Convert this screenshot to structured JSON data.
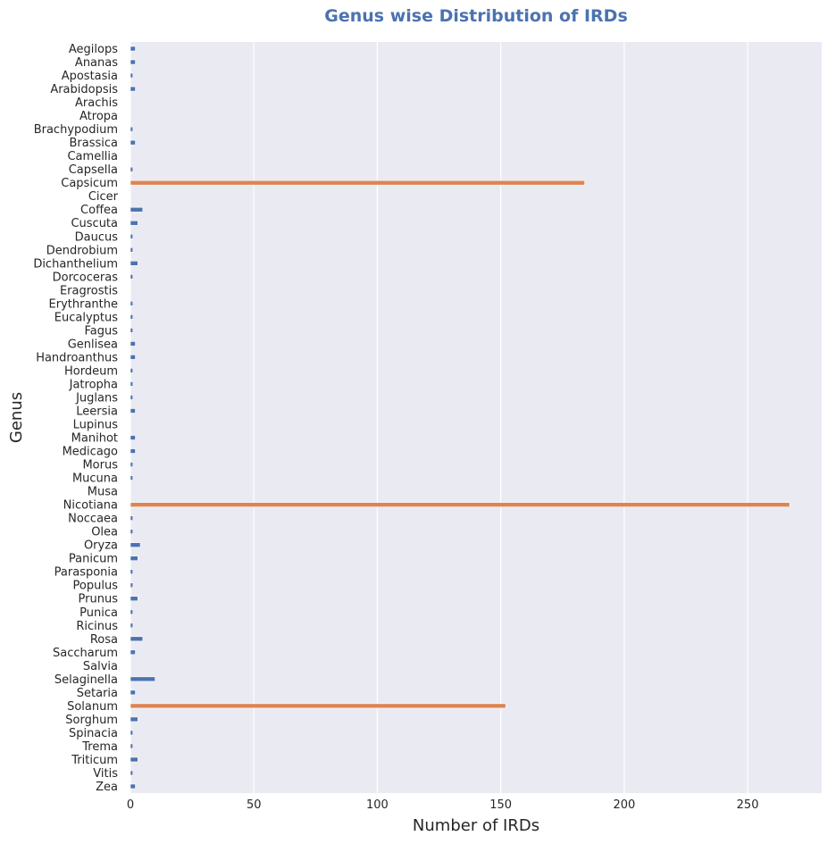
{
  "chart_data": {
    "type": "bar",
    "orientation": "horizontal",
    "title": "Genus wise Distribution of IRDs",
    "xlabel": "Number of IRDs",
    "ylabel": "Genus",
    "xlim": [
      0,
      280
    ],
    "xticks": [
      0,
      50,
      100,
      150,
      200,
      250
    ],
    "grid": true,
    "categories": [
      "Aegilops",
      "Ananas",
      "Apostasia",
      "Arabidopsis",
      "Arachis",
      "Atropa",
      "Brachypodium",
      "Brassica",
      "Camellia",
      "Capsella",
      "Capsicum",
      "Cicer",
      "Coffea",
      "Cuscuta",
      "Daucus",
      "Dendrobium",
      "Dichanthelium",
      "Dorcoceras",
      "Eragrostis",
      "Erythranthe",
      "Eucalyptus",
      "Fagus",
      "Genlisea",
      "Handroanthus",
      "Hordeum",
      "Jatropha",
      "Juglans",
      "Leersia",
      "Lupinus",
      "Manihot",
      "Medicago",
      "Morus",
      "Mucuna",
      "Musa",
      "Nicotiana",
      "Noccaea",
      "Olea",
      "Oryza",
      "Panicum",
      "Parasponia",
      "Populus",
      "Prunus",
      "Punica",
      "Ricinus",
      "Rosa",
      "Saccharum",
      "Salvia",
      "Selaginella",
      "Setaria",
      "Solanum",
      "Sorghum",
      "Spinacia",
      "Trema",
      "Triticum",
      "Vitis",
      "Zea"
    ],
    "values": [
      2,
      2,
      1,
      2,
      0,
      0,
      1,
      2,
      0,
      1,
      184,
      0,
      5,
      3,
      1,
      1,
      3,
      1,
      0,
      1,
      1,
      1,
      2,
      2,
      1,
      1,
      1,
      2,
      0,
      2,
      2,
      1,
      1,
      0,
      267,
      1,
      1,
      4,
      3,
      1,
      1,
      3,
      1,
      1,
      5,
      2,
      0,
      10,
      2,
      152,
      3,
      1,
      1,
      3,
      1,
      2
    ],
    "highlighted": [
      "Capsicum",
      "Nicotiana",
      "Solanum"
    ],
    "colors": {
      "default": "#4c72b0",
      "highlight": "#dd8452",
      "background": "#eaeaf2",
      "grid": "#ffffff",
      "title": "#4c72b0"
    }
  }
}
